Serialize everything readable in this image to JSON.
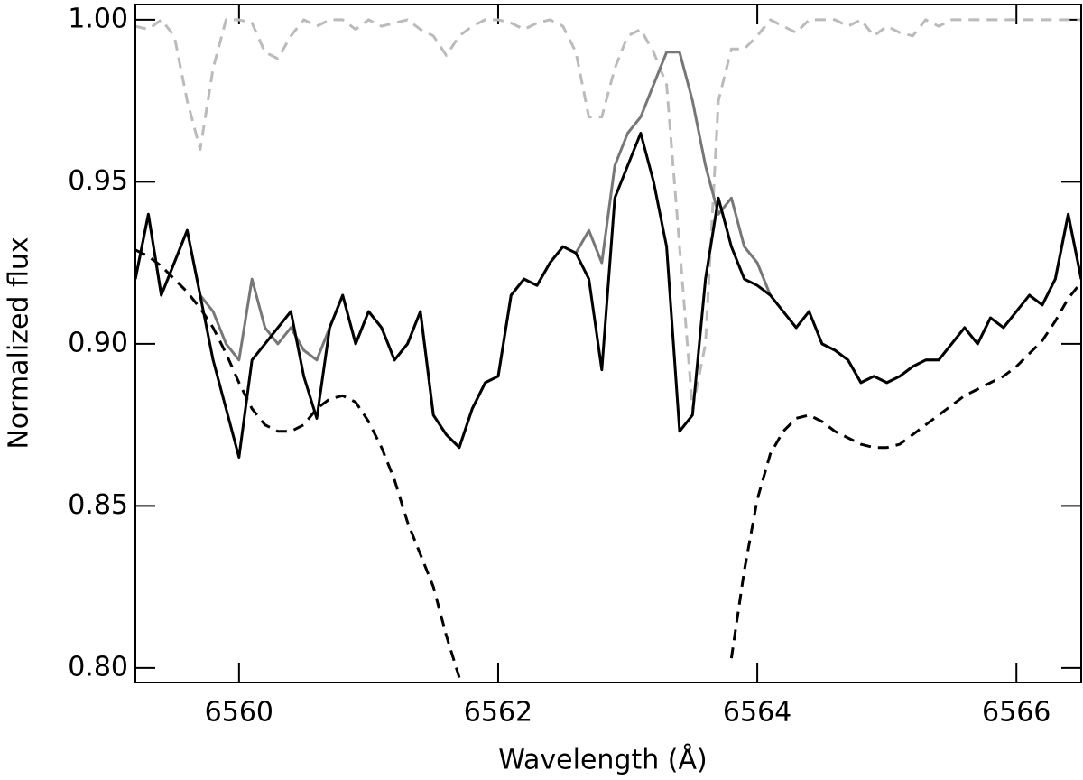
{
  "chart_data": {
    "type": "line",
    "xlabel": "Wavelength (Å)",
    "ylabel": "Normalized flux",
    "x": [
      6559.2,
      6559.3,
      6559.4,
      6559.5,
      6559.6,
      6559.7,
      6559.8,
      6559.9,
      6560.0,
      6560.1,
      6560.2,
      6560.3,
      6560.4,
      6560.5,
      6560.6,
      6560.7,
      6560.8,
      6560.9,
      6561.0,
      6561.1,
      6561.2,
      6561.3,
      6561.4,
      6561.5,
      6561.6,
      6561.7,
      6561.8,
      6561.9,
      6562.0,
      6562.1,
      6562.2,
      6562.3,
      6562.4,
      6562.5,
      6562.6,
      6562.7,
      6562.8,
      6562.9,
      6563.0,
      6563.1,
      6563.2,
      6563.3,
      6563.4,
      6563.5,
      6563.6,
      6563.7,
      6563.8,
      6563.9,
      6564.0,
      6564.1,
      6564.2,
      6564.3,
      6564.4,
      6564.5,
      6564.6,
      6564.7,
      6564.8,
      6564.9,
      6565.0,
      6565.1,
      6565.2,
      6565.3,
      6565.4,
      6565.5,
      6565.6,
      6565.7,
      6565.8,
      6565.9,
      6566.0,
      6566.1,
      6566.2,
      6566.3,
      6566.4,
      6566.5
    ],
    "series": [
      {
        "color": "#bbbbbb",
        "dashed": true,
        "values": [
          0.998,
          0.997,
          1.0,
          0.995,
          0.975,
          0.96,
          0.985,
          1.0,
          1.0,
          0.999,
          0.99,
          0.988,
          0.995,
          1.0,
          0.998,
          1.0,
          1.0,
          0.997,
          1.0,
          0.998,
          0.999,
          1.0,
          0.997,
          0.995,
          0.989,
          0.995,
          0.998,
          1.0,
          1.0,
          0.999,
          0.997,
          0.999,
          1.0,
          0.998,
          0.99,
          0.97,
          0.97,
          0.985,
          0.995,
          0.997,
          0.99,
          0.98,
          0.93,
          0.88,
          0.9,
          0.975,
          0.991,
          0.991,
          0.995,
          1.0,
          0.998,
          0.996,
          1.0,
          1.0,
          1.0,
          0.998,
          1.0,
          0.995,
          0.998,
          0.996,
          0.995,
          1.0,
          0.998,
          1.0,
          1.0,
          1.0,
          1.0,
          1.0,
          1.0,
          1.0,
          1.0,
          1.0,
          1.0,
          1.0
        ]
      },
      {
        "color": "#000000",
        "dashed": true,
        "values": [
          0.929,
          0.927,
          0.924,
          0.92,
          0.916,
          0.911,
          0.905,
          0.897,
          0.888,
          0.88,
          0.875,
          0.873,
          0.873,
          0.875,
          0.88,
          0.883,
          0.884,
          0.882,
          0.876,
          0.868,
          0.858,
          0.845,
          0.835,
          0.825,
          0.81,
          0.797,
          null,
          null,
          null,
          null,
          null,
          null,
          null,
          null,
          null,
          null,
          null,
          null,
          null,
          null,
          null,
          null,
          null,
          null,
          null,
          null,
          0.803,
          0.83,
          0.852,
          0.866,
          0.873,
          0.877,
          0.878,
          0.876,
          0.873,
          0.871,
          0.869,
          0.868,
          0.868,
          0.869,
          0.872,
          0.875,
          0.878,
          0.881,
          0.884,
          0.886,
          0.888,
          0.89,
          0.893,
          0.897,
          0.901,
          0.907,
          0.914,
          0.919
        ]
      },
      {
        "color": "#777777",
        "dashed": false,
        "values": [
          0.92,
          0.94,
          0.915,
          0.925,
          0.935,
          0.915,
          0.91,
          0.9,
          0.895,
          0.92,
          0.905,
          0.9,
          0.905,
          0.898,
          0.895,
          0.905,
          0.915,
          0.9,
          0.91,
          0.905,
          0.895,
          0.9,
          0.91,
          0.878,
          0.872,
          0.868,
          0.88,
          0.888,
          0.89,
          0.915,
          0.92,
          0.918,
          0.925,
          0.93,
          0.928,
          0.935,
          0.925,
          0.955,
          0.965,
          0.97,
          0.98,
          0.99,
          0.99,
          0.975,
          0.955,
          0.94,
          0.945,
          0.93,
          0.925,
          0.915,
          0.91,
          0.905,
          0.91,
          0.9,
          0.898,
          0.895,
          0.888,
          0.89,
          0.888,
          0.89,
          0.893,
          0.895,
          0.895,
          0.9,
          0.905,
          0.9,
          0.908,
          0.905,
          0.91,
          0.915,
          0.912,
          0.92,
          0.94,
          0.92
        ]
      },
      {
        "color": "#000000",
        "dashed": false,
        "values": [
          0.92,
          0.94,
          0.915,
          0.925,
          0.935,
          0.915,
          0.895,
          0.88,
          0.865,
          0.895,
          0.9,
          0.905,
          0.91,
          0.89,
          0.877,
          0.905,
          0.915,
          0.9,
          0.91,
          0.905,
          0.895,
          0.9,
          0.91,
          0.878,
          0.872,
          0.868,
          0.88,
          0.888,
          0.89,
          0.915,
          0.92,
          0.918,
          0.925,
          0.93,
          0.928,
          0.92,
          0.892,
          0.945,
          0.955,
          0.965,
          0.95,
          0.93,
          0.873,
          0.878,
          0.92,
          0.945,
          0.93,
          0.92,
          0.918,
          0.915,
          0.91,
          0.905,
          0.91,
          0.9,
          0.898,
          0.895,
          0.888,
          0.89,
          0.888,
          0.89,
          0.893,
          0.895,
          0.895,
          0.9,
          0.905,
          0.9,
          0.908,
          0.905,
          0.91,
          0.915,
          0.912,
          0.92,
          0.94,
          0.92
        ]
      }
    ],
    "xlim": [
      6559.2,
      6566.5
    ],
    "xticks": [
      6560,
      6562,
      6564,
      6566
    ],
    "ylim": [
      0.7955,
      1.0047
    ],
    "yticks": [
      {
        "value": 0.8,
        "label": "0.80"
      },
      0.85,
      {
        "value": 0.9,
        "label": "0.90"
      },
      0.95,
      {
        "value": 1.0,
        "label": "1.00"
      }
    ],
    "grid": false
  }
}
